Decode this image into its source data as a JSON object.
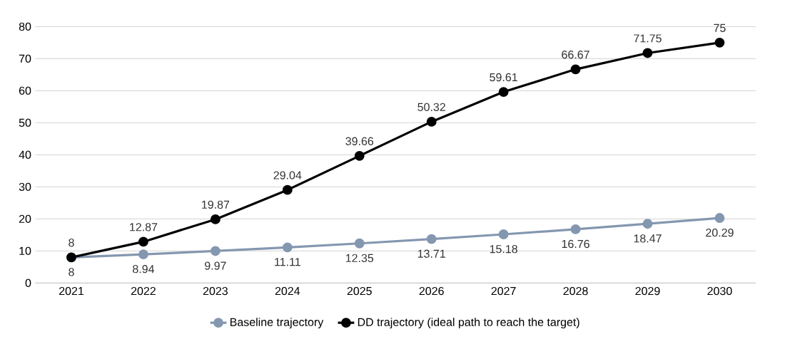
{
  "chart_data": {
    "type": "line",
    "categories": [
      "2021",
      "2022",
      "2023",
      "2024",
      "2025",
      "2026",
      "2027",
      "2028",
      "2029",
      "2030"
    ],
    "series": [
      {
        "name": "Baseline trajectory",
        "color": "#8497b0",
        "values": [
          8,
          8.94,
          9.97,
          11.11,
          12.35,
          13.71,
          15.18,
          16.76,
          18.47,
          20.29
        ]
      },
      {
        "name": "DD trajectory (ideal path to reach the target)",
        "color": "#000000",
        "values": [
          8,
          12.87,
          19.87,
          29.04,
          39.66,
          50.32,
          59.61,
          66.67,
          71.75,
          75
        ]
      }
    ],
    "ylim": [
      0,
      80
    ],
    "yticks": [
      0,
      10,
      20,
      30,
      40,
      50,
      60,
      70,
      80
    ],
    "grid": "y",
    "legend": "bottom",
    "marker": "circle",
    "line_style": "solid",
    "data_labels": true
  }
}
